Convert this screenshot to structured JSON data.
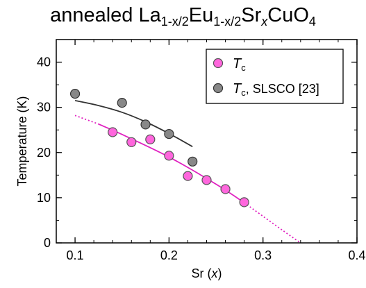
{
  "chart_data": {
    "type": "scatter",
    "title": {
      "prefix": "annealed La",
      "sub1": "1-x/2",
      "mid": "Eu",
      "sub2": "1-x/2",
      "sr": "Sr",
      "x": "x",
      "tail": "CuO",
      "sub3": "4"
    },
    "xlabel": {
      "prefix": "Sr (",
      "var": "x",
      "suffix": ")"
    },
    "ylabel": "Temperature (K)",
    "xlim": [
      0.08,
      0.4
    ],
    "ylim": [
      0,
      45
    ],
    "xticks": [
      "0.1",
      "0.2",
      "0.3",
      "0.4"
    ],
    "yticks": [
      "0",
      "10",
      "20",
      "30",
      "40"
    ],
    "series": [
      {
        "name": "T",
        "name_sub": "c",
        "name_suffix": "",
        "color": "#ff66dd",
        "edge": "#555555",
        "points": [
          {
            "x": 0.14,
            "y": 24.5
          },
          {
            "x": 0.16,
            "y": 22.3
          },
          {
            "x": 0.18,
            "y": 22.9
          },
          {
            "x": 0.2,
            "y": 19.3
          },
          {
            "x": 0.22,
            "y": 14.8
          },
          {
            "x": 0.24,
            "y": 13.9
          },
          {
            "x": 0.26,
            "y": 11.9
          },
          {
            "x": 0.28,
            "y": 9.0
          }
        ],
        "fit": {
          "color": "#e020c0",
          "solid": [
            [
              0.125,
              26.3
            ],
            [
              0.15,
              24.0
            ],
            [
              0.2,
              19.0
            ],
            [
              0.25,
              13.0
            ],
            [
              0.28,
              8.9
            ]
          ],
          "dashed_low": [
            [
              0.1,
              28.2
            ],
            [
              0.125,
              26.3
            ]
          ],
          "dashed_high": [
            [
              0.28,
              8.9
            ],
            [
              0.3,
              5.9
            ],
            [
              0.32,
              2.9
            ],
            [
              0.34,
              0.0
            ]
          ]
        }
      },
      {
        "name": "T",
        "name_sub": "c",
        "name_suffix": ", SLSCO [23]",
        "color": "#888888",
        "edge": "#333333",
        "points": [
          {
            "x": 0.1,
            "y": 33.0
          },
          {
            "x": 0.15,
            "y": 31.0
          },
          {
            "x": 0.175,
            "y": 26.2
          },
          {
            "x": 0.2,
            "y": 24.1
          },
          {
            "x": 0.225,
            "y": 18.0
          }
        ],
        "fit": {
          "color": "#333333",
          "solid": [
            [
              0.1,
              31.5
            ],
            [
              0.125,
              30.4
            ],
            [
              0.15,
              28.9
            ],
            [
              0.175,
              26.8
            ],
            [
              0.2,
              24.2
            ],
            [
              0.225,
              21.3
            ]
          ]
        }
      }
    ],
    "legend": {
      "position": "top-right"
    },
    "grid": false
  }
}
